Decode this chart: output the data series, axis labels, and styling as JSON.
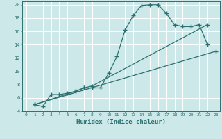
{
  "xlabel": "Humidex (Indice chaleur)",
  "bg_color": "#cce8e8",
  "grid_color": "#ffffff",
  "line_color": "#2a7070",
  "xlim": [
    -0.5,
    23.5
  ],
  "ylim": [
    4,
    20.5
  ],
  "xticks": [
    0,
    1,
    2,
    3,
    4,
    5,
    6,
    7,
    8,
    9,
    10,
    11,
    12,
    13,
    14,
    15,
    16,
    17,
    18,
    19,
    20,
    21,
    22,
    23
  ],
  "yticks": [
    4,
    6,
    8,
    10,
    12,
    14,
    16,
    18,
    20
  ],
  "line1_x": [
    1,
    2,
    3,
    4,
    5,
    6,
    7,
    8,
    9,
    10,
    11,
    12,
    13,
    14,
    15,
    16,
    17,
    18,
    19,
    20,
    21,
    22
  ],
  "line1_y": [
    5.0,
    4.7,
    6.5,
    6.5,
    6.7,
    7.0,
    7.5,
    7.5,
    7.5,
    9.7,
    12.2,
    16.2,
    18.4,
    19.9,
    20.0,
    20.0,
    18.7,
    17.0,
    16.7,
    16.7,
    17.0,
    14.0
  ],
  "line2_x": [
    1,
    6,
    7,
    8,
    22
  ],
  "line2_y": [
    5.0,
    7.0,
    7.5,
    7.8,
    17.0
  ],
  "line3_x": [
    1,
    23
  ],
  "line3_y": [
    5.0,
    13.0
  ]
}
